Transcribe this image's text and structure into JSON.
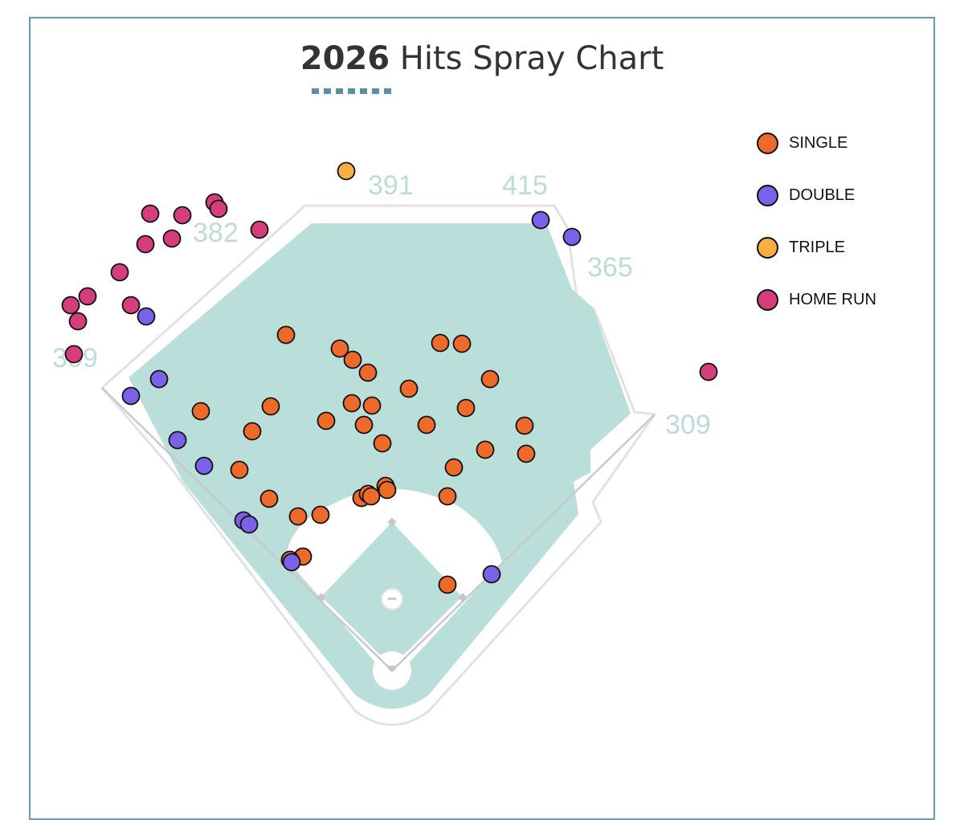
{
  "chart_data": {
    "type": "scatter",
    "title_year": "2026",
    "title_rest": " Hits Spray Chart",
    "wall_labels": [
      {
        "text": "309",
        "position": "left-field-line"
      },
      {
        "text": "382",
        "position": "left-center"
      },
      {
        "text": "391",
        "position": "center"
      },
      {
        "text": "415",
        "position": "right-center"
      },
      {
        "text": "365",
        "position": "right-center-corner"
      },
      {
        "text": "309",
        "position": "right-field-line"
      }
    ],
    "legend": [
      {
        "key": "single",
        "label": "SINGLE",
        "color": "#ee6a2a"
      },
      {
        "key": "double",
        "label": "DOUBLE",
        "color": "#7b61e8"
      },
      {
        "key": "triple",
        "label": "TRIPLE",
        "color": "#f5b041"
      },
      {
        "key": "home_run",
        "label": "HOME RUN",
        "color": "#d63d7c"
      }
    ],
    "series": [
      {
        "key": "single",
        "name": "SINGLE",
        "points": [
          [
            356,
            417
          ],
          [
            423,
            434
          ],
          [
            439,
            448
          ],
          [
            458,
            464
          ],
          [
            548,
            427
          ],
          [
            575,
            428
          ],
          [
            610,
            472
          ],
          [
            509,
            484
          ],
          [
            438,
            502
          ],
          [
            463,
            505
          ],
          [
            580,
            508
          ],
          [
            250,
            512
          ],
          [
            337,
            506
          ],
          [
            314,
            537
          ],
          [
            406,
            524
          ],
          [
            453,
            529
          ],
          [
            531,
            529
          ],
          [
            653,
            530
          ],
          [
            476,
            552
          ],
          [
            604,
            560
          ],
          [
            655,
            565
          ],
          [
            565,
            582
          ],
          [
            298,
            585
          ],
          [
            335,
            621
          ],
          [
            371,
            643
          ],
          [
            399,
            641
          ],
          [
            450,
            620
          ],
          [
            458,
            615
          ],
          [
            462,
            618
          ],
          [
            480,
            605
          ],
          [
            482,
            610
          ],
          [
            557,
            618
          ],
          [
            377,
            693
          ],
          [
            557,
            728
          ],
          [
            361,
            697
          ]
        ]
      },
      {
        "key": "double",
        "name": "DOUBLE",
        "points": [
          [
            673,
            274
          ],
          [
            712,
            295
          ],
          [
            182,
            394
          ],
          [
            198,
            472
          ],
          [
            163,
            493
          ],
          [
            221,
            548
          ],
          [
            254,
            580
          ],
          [
            303,
            648
          ],
          [
            310,
            653
          ],
          [
            363,
            700
          ],
          [
            612,
            715
          ]
        ]
      },
      {
        "key": "triple",
        "name": "TRIPLE",
        "points": [
          [
            431,
            213
          ]
        ]
      },
      {
        "key": "home_run",
        "name": "HOME RUN",
        "points": [
          [
            267,
            252
          ],
          [
            272,
            260
          ],
          [
            187,
            266
          ],
          [
            227,
            268
          ],
          [
            323,
            286
          ],
          [
            214,
            297
          ],
          [
            181,
            304
          ],
          [
            149,
            339
          ],
          [
            109,
            369
          ],
          [
            88,
            380
          ],
          [
            163,
            380
          ],
          [
            97,
            400
          ],
          [
            92,
            441
          ],
          [
            882,
            463
          ]
        ]
      }
    ]
  }
}
